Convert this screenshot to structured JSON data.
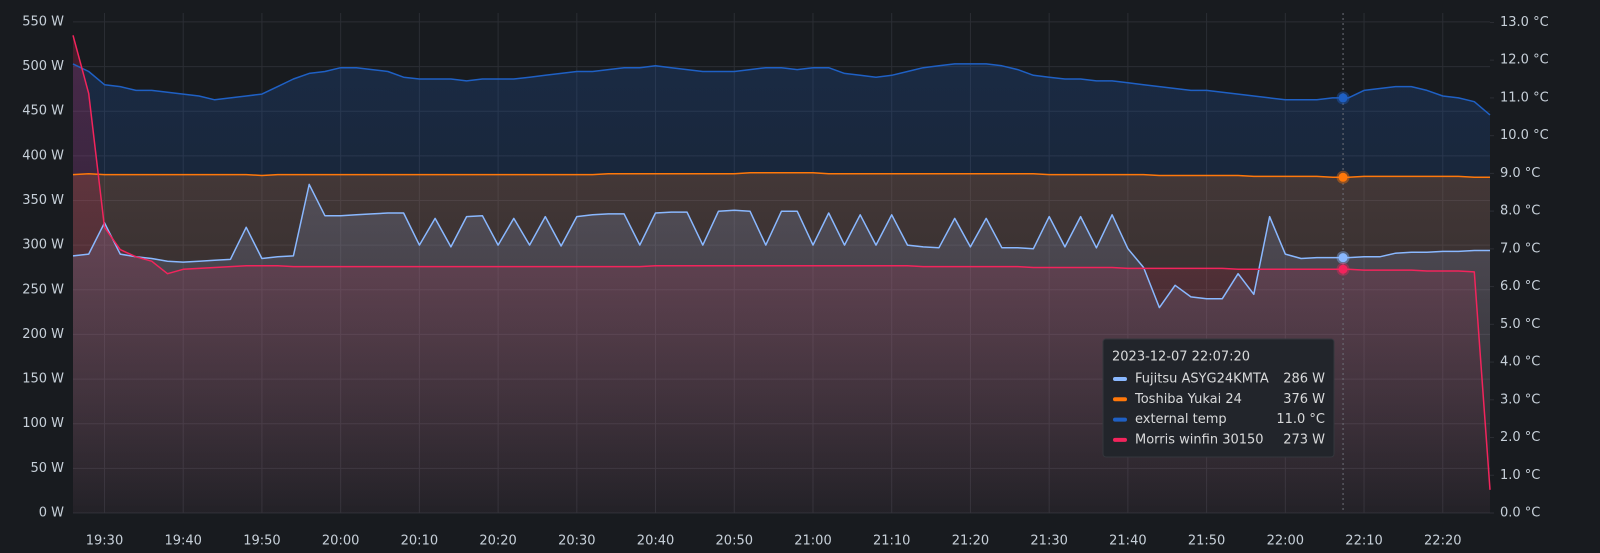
{
  "chart_data": {
    "type": "line",
    "x": [
      "19:26",
      "19:28",
      "19:30",
      "19:32",
      "19:34",
      "19:36",
      "19:38",
      "19:40",
      "19:42",
      "19:44",
      "19:46",
      "19:48",
      "19:50",
      "19:52",
      "19:54",
      "19:56",
      "19:58",
      "20:00",
      "20:02",
      "20:04",
      "20:06",
      "20:08",
      "20:10",
      "20:12",
      "20:14",
      "20:16",
      "20:18",
      "20:20",
      "20:22",
      "20:24",
      "20:26",
      "20:28",
      "20:30",
      "20:32",
      "20:34",
      "20:36",
      "20:38",
      "20:40",
      "20:42",
      "20:44",
      "20:46",
      "20:48",
      "20:50",
      "20:52",
      "20:54",
      "20:56",
      "20:58",
      "21:00",
      "21:02",
      "21:04",
      "21:06",
      "21:08",
      "21:10",
      "21:12",
      "21:14",
      "21:16",
      "21:18",
      "21:20",
      "21:22",
      "21:24",
      "21:26",
      "21:28",
      "21:30",
      "21:32",
      "21:34",
      "21:36",
      "21:38",
      "21:40",
      "21:42",
      "21:44",
      "21:46",
      "21:48",
      "21:50",
      "21:52",
      "21:54",
      "21:56",
      "21:58",
      "22:00",
      "22:02",
      "22:04",
      "22:06",
      "22:08",
      "22:10",
      "22:12",
      "22:14",
      "22:16",
      "22:18",
      "22:20",
      "22:22",
      "22:24",
      "22:26"
    ],
    "xlim": [
      "19:26",
      "22:26"
    ],
    "xticks": [
      "19:30",
      "19:40",
      "19:50",
      "20:00",
      "20:10",
      "20:20",
      "20:30",
      "20:40",
      "20:50",
      "21:00",
      "21:10",
      "21:20",
      "21:30",
      "21:40",
      "21:50",
      "22:00",
      "22:10",
      "22:20"
    ],
    "ylim": [
      0,
      560
    ],
    "yticks": [
      {
        "value": 0,
        "label": "0 W"
      },
      {
        "value": 50,
        "label": "50 W"
      },
      {
        "value": 100,
        "label": "100 W"
      },
      {
        "value": 150,
        "label": "150 W"
      },
      {
        "value": 200,
        "label": "200 W"
      },
      {
        "value": 250,
        "label": "250 W"
      },
      {
        "value": 300,
        "label": "300 W"
      },
      {
        "value": 350,
        "label": "350 W"
      },
      {
        "value": 400,
        "label": "400 W"
      },
      {
        "value": 450,
        "label": "450 W"
      },
      {
        "value": 500,
        "label": "500 W"
      },
      {
        "value": 550,
        "label": "550 W"
      }
    ],
    "y2lim": [
      0,
      13.25
    ],
    "y2ticks": [
      {
        "value": 0,
        "label": "0.0 °C"
      },
      {
        "value": 1,
        "label": "1.0 °C"
      },
      {
        "value": 2,
        "label": "2.0 °C"
      },
      {
        "value": 3,
        "label": "3.0 °C"
      },
      {
        "value": 4,
        "label": "4.0 °C"
      },
      {
        "value": 5,
        "label": "5.0 °C"
      },
      {
        "value": 6,
        "label": "6.0 °C"
      },
      {
        "value": 7,
        "label": "7.0 °C"
      },
      {
        "value": 8,
        "label": "8.0 °C"
      },
      {
        "value": 9,
        "label": "9.0 °C"
      },
      {
        "value": 10,
        "label": "10.0 °C"
      },
      {
        "value": 11,
        "label": "11.0 °C"
      },
      {
        "value": 12,
        "label": "12.0 °C"
      },
      {
        "value": 13,
        "label": "13.0 °C"
      }
    ],
    "grid": true,
    "series": [
      {
        "name": "Fujitsu ASYG24KMTA",
        "color": "#8ab8ff",
        "values": [
          288,
          290,
          325,
          290,
          287,
          285,
          282,
          281,
          282,
          283,
          284,
          320,
          285,
          287,
          288,
          368,
          333,
          333,
          334,
          335,
          336,
          336,
          300,
          330,
          298,
          332,
          333,
          300,
          330,
          300,
          332,
          299,
          332,
          334,
          335,
          335,
          300,
          336,
          337,
          337,
          300,
          338,
          339,
          338,
          300,
          338,
          338,
          300,
          336,
          300,
          334,
          300,
          334,
          300,
          298,
          297,
          330,
          298,
          330,
          297,
          297,
          296,
          332,
          298,
          332,
          297,
          334,
          296,
          275,
          230,
          255,
          242,
          240,
          240,
          268,
          245,
          332,
          290,
          285,
          286,
          286,
          286,
          287,
          287,
          291,
          292,
          292,
          293,
          293,
          294,
          294
        ]
      },
      {
        "name": "Toshiba Yukai 24",
        "color": "#ff780a",
        "values": [
          379,
          380,
          379,
          379,
          379,
          379,
          379,
          379,
          379,
          379,
          379,
          379,
          378,
          379,
          379,
          379,
          379,
          379,
          379,
          379,
          379,
          379,
          379,
          379,
          379,
          379,
          379,
          379,
          379,
          379,
          379,
          379,
          379,
          379,
          380,
          380,
          380,
          380,
          380,
          380,
          380,
          380,
          380,
          381,
          381,
          381,
          381,
          381,
          380,
          380,
          380,
          380,
          380,
          380,
          380,
          380,
          380,
          380,
          380,
          380,
          380,
          380,
          379,
          379,
          379,
          379,
          379,
          379,
          379,
          378,
          378,
          378,
          378,
          378,
          378,
          377,
          377,
          377,
          377,
          377,
          376,
          376,
          377,
          377,
          377,
          377,
          377,
          377,
          377,
          376,
          376
        ]
      },
      {
        "name": "external temp",
        "color": "#1f60c4",
        "axis": "y2",
        "values": [
          11.9,
          11.7,
          11.35,
          11.3,
          11.2,
          11.2,
          11.15,
          11.1,
          11.05,
          10.95,
          11.0,
          11.05,
          11.1,
          11.3,
          11.5,
          11.65,
          11.7,
          11.8,
          11.8,
          11.75,
          11.7,
          11.55,
          11.5,
          11.5,
          11.5,
          11.45,
          11.5,
          11.5,
          11.5,
          11.55,
          11.6,
          11.65,
          11.7,
          11.7,
          11.75,
          11.8,
          11.8,
          11.85,
          11.8,
          11.75,
          11.7,
          11.7,
          11.7,
          11.75,
          11.8,
          11.8,
          11.75,
          11.8,
          11.8,
          11.65,
          11.6,
          11.55,
          11.6,
          11.7,
          11.8,
          11.85,
          11.9,
          11.9,
          11.9,
          11.85,
          11.75,
          11.6,
          11.55,
          11.5,
          11.5,
          11.45,
          11.45,
          11.4,
          11.35,
          11.3,
          11.25,
          11.2,
          11.2,
          11.15,
          11.1,
          11.05,
          11.0,
          10.95,
          10.95,
          10.95,
          11.0,
          11.0,
          11.2,
          11.25,
          11.3,
          11.3,
          11.2,
          11.05,
          11.0,
          10.9,
          10.55
        ]
      },
      {
        "name": "Morris winfin 30150",
        "color": "#f2245c",
        "values": [
          535,
          470,
          320,
          295,
          287,
          282,
          268,
          273,
          274,
          275,
          276,
          277,
          277,
          277,
          276,
          276,
          276,
          276,
          276,
          276,
          276,
          276,
          276,
          276,
          276,
          276,
          276,
          276,
          276,
          276,
          276,
          276,
          276,
          276,
          276,
          276,
          276,
          277,
          277,
          277,
          277,
          277,
          277,
          277,
          277,
          277,
          277,
          277,
          277,
          277,
          277,
          277,
          277,
          277,
          276,
          276,
          276,
          276,
          276,
          276,
          276,
          275,
          275,
          275,
          275,
          275,
          275,
          274,
          274,
          274,
          274,
          274,
          274,
          274,
          273,
          273,
          273,
          273,
          273,
          273,
          273,
          273,
          272,
          272,
          272,
          272,
          271,
          271,
          271,
          270,
          26
        ]
      }
    ],
    "tooltip": {
      "title": "2023-12-07 22:07:20",
      "values": [
        286,
        376,
        11.0,
        273
      ],
      "value_labels": [
        "286 W",
        "376 W",
        "11.0 °C",
        "273 W"
      ]
    }
  }
}
